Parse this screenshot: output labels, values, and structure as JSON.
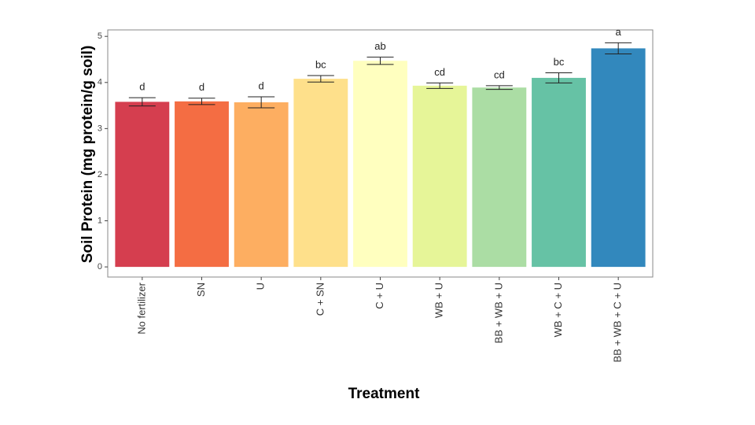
{
  "chart_data": {
    "type": "bar",
    "xlabel": "Treatment",
    "ylabel": "Soil Protein (mg protein/g soil)",
    "categories": [
      "No fertilizer",
      "SN",
      "U",
      "C + SN",
      "C + U",
      "WB + U",
      "BB + WB + U",
      "WB + C + U",
      "BB + WB + C + U"
    ],
    "values": [
      3.58,
      3.59,
      3.57,
      4.08,
      4.47,
      3.93,
      3.89,
      4.1,
      4.74
    ],
    "errors": [
      0.09,
      0.07,
      0.12,
      0.07,
      0.08,
      0.06,
      0.04,
      0.11,
      0.12
    ],
    "annotations": [
      "d",
      "d",
      "d",
      "bc",
      "ab",
      "cd",
      "cd",
      "bc",
      "a"
    ],
    "colors": [
      "#d53e4f",
      "#f46d43",
      "#fdae61",
      "#fee08b",
      "#ffffbf",
      "#e6f598",
      "#abdda4",
      "#66c2a5",
      "#3288bd"
    ],
    "ylim": [
      -0.22,
      5.14
    ],
    "yticks": [
      0,
      1,
      2,
      3,
      4,
      5
    ],
    "grid": false
  }
}
